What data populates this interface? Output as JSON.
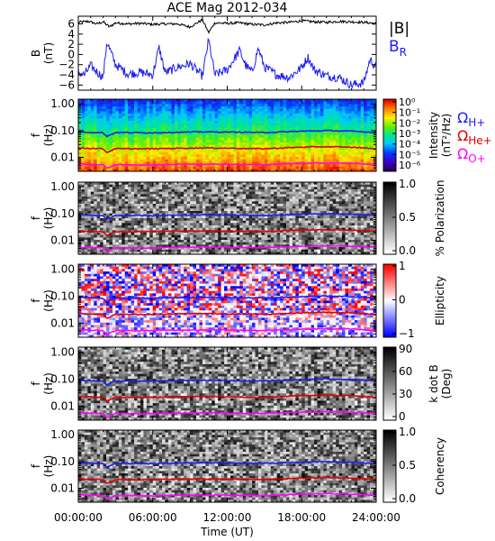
{
  "chart_data": {
    "type": "spectrogram",
    "title": "ACE Mag 2012-034",
    "time_axis": {
      "label": "Time (UT)",
      "ticks": [
        "00:00:00",
        "06:00:00",
        "12:00:00",
        "18:00:00",
        "24:00:00"
      ],
      "range_hours": [
        0,
        24
      ]
    },
    "panels": [
      {
        "kind": "line",
        "ylabel": "B",
        "yunit": "(nT)",
        "ylim": [
          -7,
          7.5
        ],
        "yticks": [
          "6",
          "4",
          "2",
          "0",
          "−2",
          "−4",
          "−6"
        ],
        "ytick_values": [
          6,
          4,
          2,
          0,
          -2,
          -4,
          -6
        ],
        "legend": [
          {
            "label": "|B|",
            "color": "#000000"
          },
          {
            "label": "B",
            "sub": "R",
            "color": "#1d1df0"
          }
        ],
        "series": [
          {
            "name": "|B|",
            "color": "#000000",
            "t": [
              0,
              0.8,
              1.5,
              2,
              2.5,
              3,
              4,
              5,
              6,
              7,
              8,
              9,
              10,
              10.5,
              11,
              12,
              13,
              14,
              15,
              16,
              17,
              18,
              19,
              20,
              21,
              22,
              23,
              24
            ],
            "v": [
              6.3,
              6.5,
              6.0,
              6.4,
              5.4,
              6.2,
              6.0,
              6.1,
              5.9,
              6.0,
              6.0,
              5.4,
              6.8,
              4.3,
              6.2,
              6.1,
              6.2,
              5.9,
              5.8,
              6.2,
              6.3,
              6.6,
              6.4,
              6.3,
              6.5,
              6.4,
              6.3,
              6.1
            ]
          },
          {
            "name": "B_R",
            "color": "#1d1df0",
            "t": [
              0,
              0.5,
              1,
              1.5,
              2,
              2.3,
              3,
              4,
              5,
              6,
              6.5,
              7,
              8,
              9,
              10,
              10.5,
              11,
              12,
              13,
              13.5,
              14,
              14.5,
              15,
              16,
              17,
              18,
              18.5,
              19,
              20,
              21,
              22,
              23,
              23.5,
              24
            ],
            "v": [
              -3.5,
              -4.0,
              -2.2,
              -3.4,
              -4.5,
              2.5,
              -2.0,
              -3.8,
              -3.5,
              -4.0,
              1.4,
              -3.6,
              -2.5,
              -1.8,
              -4.2,
              2.8,
              -4.0,
              -3.0,
              0.8,
              -2.2,
              -3.5,
              1.2,
              -2.5,
              -4.0,
              -4.5,
              -2.5,
              -0.5,
              -3.0,
              -4.2,
              -4.5,
              -6.0,
              -5.5,
              -1.0,
              -2.5
            ]
          }
        ]
      },
      {
        "kind": "spectrogram",
        "style": "rainbow",
        "ylabel": "f",
        "yunit": "(Hz)",
        "ylim": [
          0.003,
          1.5
        ],
        "yticks": [
          "1.00",
          "0.10",
          "0.01"
        ],
        "colorbar": {
          "label": "Intensity",
          "unit": "(nT²/Hz)",
          "ticks": [
            "10⁰",
            "10⁻¹",
            "10⁻²",
            "10⁻³",
            "10⁻⁴",
            "10⁻⁵",
            "10⁻⁶"
          ],
          "range": [
            -6.5,
            0
          ]
        },
        "side_labels": [
          {
            "label": "Ω",
            "sub": "H+",
            "color": "#1d1df0"
          },
          {
            "label": "Ω",
            "sub": "He+",
            "color": "#e00000"
          },
          {
            "label": "Ω",
            "sub": "O+",
            "color": "#ff00ff"
          }
        ]
      },
      {
        "kind": "spectrogram",
        "style": "gray",
        "ylabel": "f",
        "yunit": "(Hz)",
        "ylim": [
          0.003,
          1.5
        ],
        "yticks": [
          "1.00",
          "0.10",
          "0.01"
        ],
        "colorbar": {
          "label": "% Polarization",
          "ticks": [
            "1.0",
            "0.5",
            "0.0"
          ],
          "range": [
            0,
            1
          ]
        }
      },
      {
        "kind": "spectrogram",
        "style": "bwr",
        "ylabel": "f",
        "yunit": "(Hz)",
        "ylim": [
          0.003,
          1.5
        ],
        "yticks": [
          "1.00",
          "0.10",
          "0.01"
        ],
        "colorbar": {
          "label": "Ellipticity",
          "ticks": [
            "1",
            "0",
            "−1"
          ],
          "range": [
            -1,
            1
          ]
        }
      },
      {
        "kind": "spectrogram",
        "style": "gray",
        "ylabel": "f",
        "yunit": "(Hz)",
        "ylim": [
          0.003,
          1.5
        ],
        "yticks": [
          "1.00",
          "0.10",
          "0.01"
        ],
        "colorbar": {
          "label": "k dot B",
          "unit": "(Deg)",
          "ticks": [
            "90",
            "60",
            "30",
            "0"
          ],
          "range": [
            0,
            90
          ]
        }
      },
      {
        "kind": "spectrogram",
        "style": "gray",
        "ylabel": "f",
        "yunit": "(Hz)",
        "ylim": [
          0.003,
          1.5
        ],
        "yticks": [
          "1.00",
          "0.10",
          "0.01"
        ],
        "colorbar": {
          "label": "Coherency",
          "ticks": [
            "1.0",
            "0.5",
            "0.0"
          ],
          "range": [
            0,
            1
          ]
        }
      }
    ],
    "gyrofrequency_lines": [
      {
        "name": "Ω_H+",
        "color": "#1d1df0",
        "t": [
          0,
          2,
          2.3,
          3,
          6,
          7,
          10,
          12,
          15,
          18,
          20,
          22,
          24
        ],
        "f": [
          0.09,
          0.083,
          0.06,
          0.085,
          0.083,
          0.085,
          0.09,
          0.088,
          0.085,
          0.095,
          0.1,
          0.095,
          0.085
        ]
      },
      {
        "name": "Ω_He+",
        "color": "#e00000",
        "t": [
          0,
          2,
          2.3,
          3,
          6,
          7,
          10,
          12,
          15,
          18,
          20,
          22,
          24
        ],
        "f": [
          0.0225,
          0.021,
          0.015,
          0.021,
          0.021,
          0.0215,
          0.0225,
          0.022,
          0.021,
          0.024,
          0.025,
          0.024,
          0.021
        ]
      },
      {
        "name": "Ω_O+",
        "color": "#ff00ff",
        "t": [
          0,
          2,
          2.3,
          3,
          6,
          7,
          10,
          12,
          15,
          18,
          20,
          22,
          24
        ],
        "f": [
          0.0056,
          0.0053,
          0.0038,
          0.0053,
          0.0052,
          0.0054,
          0.0056,
          0.0055,
          0.0053,
          0.006,
          0.0062,
          0.006,
          0.0053
        ]
      }
    ]
  }
}
